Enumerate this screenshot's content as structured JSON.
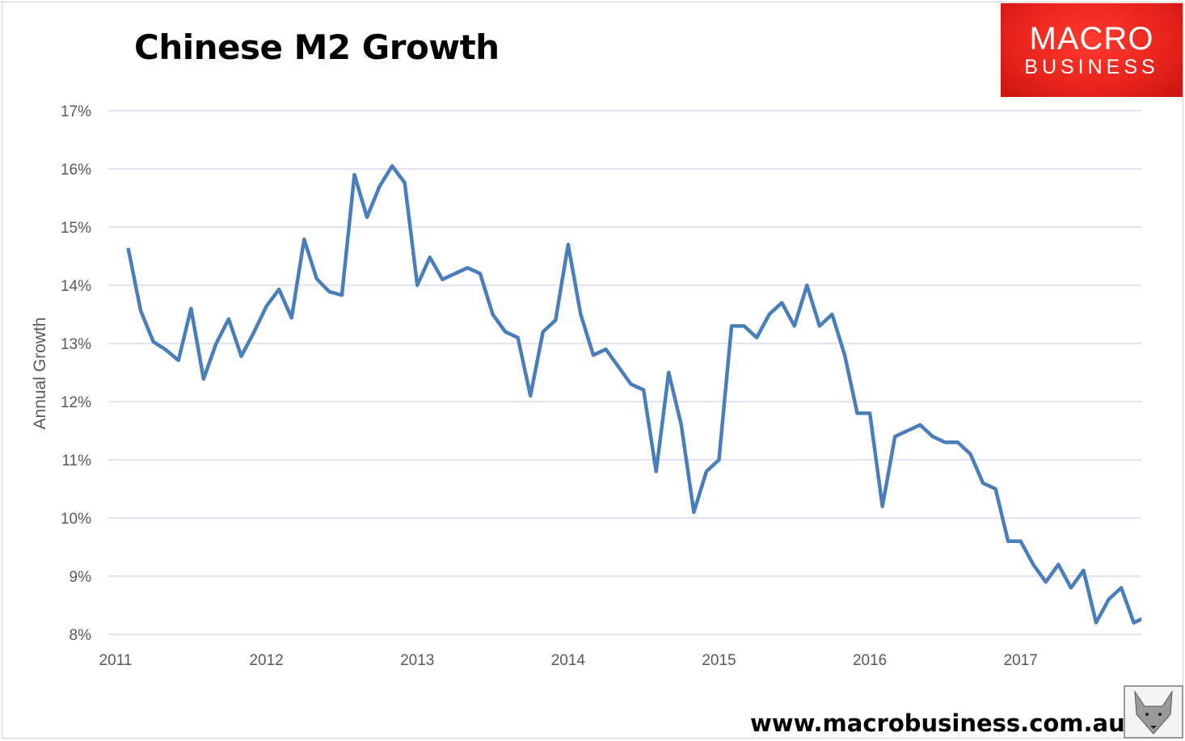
{
  "chart_data": {
    "type": "line",
    "title": "Chinese M2 Growth",
    "xlabel": "",
    "ylabel": "Annual Growth",
    "xlim": [
      2011,
      2017.8
    ],
    "ylim": [
      8,
      17
    ],
    "x_ticks": [
      "2011",
      "2012",
      "2013",
      "2014",
      "2015",
      "2016",
      "2017"
    ],
    "y_ticks": [
      "8%",
      "9%",
      "10%",
      "11%",
      "12%",
      "13%",
      "14%",
      "15%",
      "16%",
      "17%"
    ],
    "grid": true,
    "legend": "none",
    "line_color": "#4a7ebb",
    "start_month": "2011-01",
    "values": [
      14.64,
      13.56,
      13.03,
      12.89,
      12.71,
      13.6,
      12.39,
      13.0,
      13.42,
      12.78,
      13.19,
      13.64,
      13.93,
      13.44,
      14.79,
      14.11,
      13.89,
      13.83,
      15.9,
      15.17,
      15.7,
      16.05,
      15.76,
      14.0,
      14.48,
      14.1,
      14.2,
      14.3,
      14.2,
      13.5,
      13.2,
      13.1,
      12.1,
      13.2,
      13.4,
      14.7,
      13.5,
      12.8,
      12.9,
      12.6,
      12.3,
      12.2,
      10.8,
      12.5,
      11.6,
      10.1,
      10.8,
      11.0,
      13.3,
      13.3,
      13.1,
      13.5,
      13.7,
      13.3,
      14.0,
      13.3,
      13.5,
      12.8,
      11.8,
      11.8,
      10.2,
      11.4,
      11.5,
      11.6,
      11.4,
      11.3,
      11.3,
      11.1,
      10.6,
      10.5,
      9.6,
      9.6,
      9.2,
      8.9,
      9.2,
      8.8,
      9.1,
      8.2,
      8.6,
      8.8,
      8.2,
      8.3
    ]
  },
  "branding": {
    "logo_line1": "MACRO",
    "logo_line2": "BUSINESS",
    "website": "www.macrobusiness.com.au"
  }
}
